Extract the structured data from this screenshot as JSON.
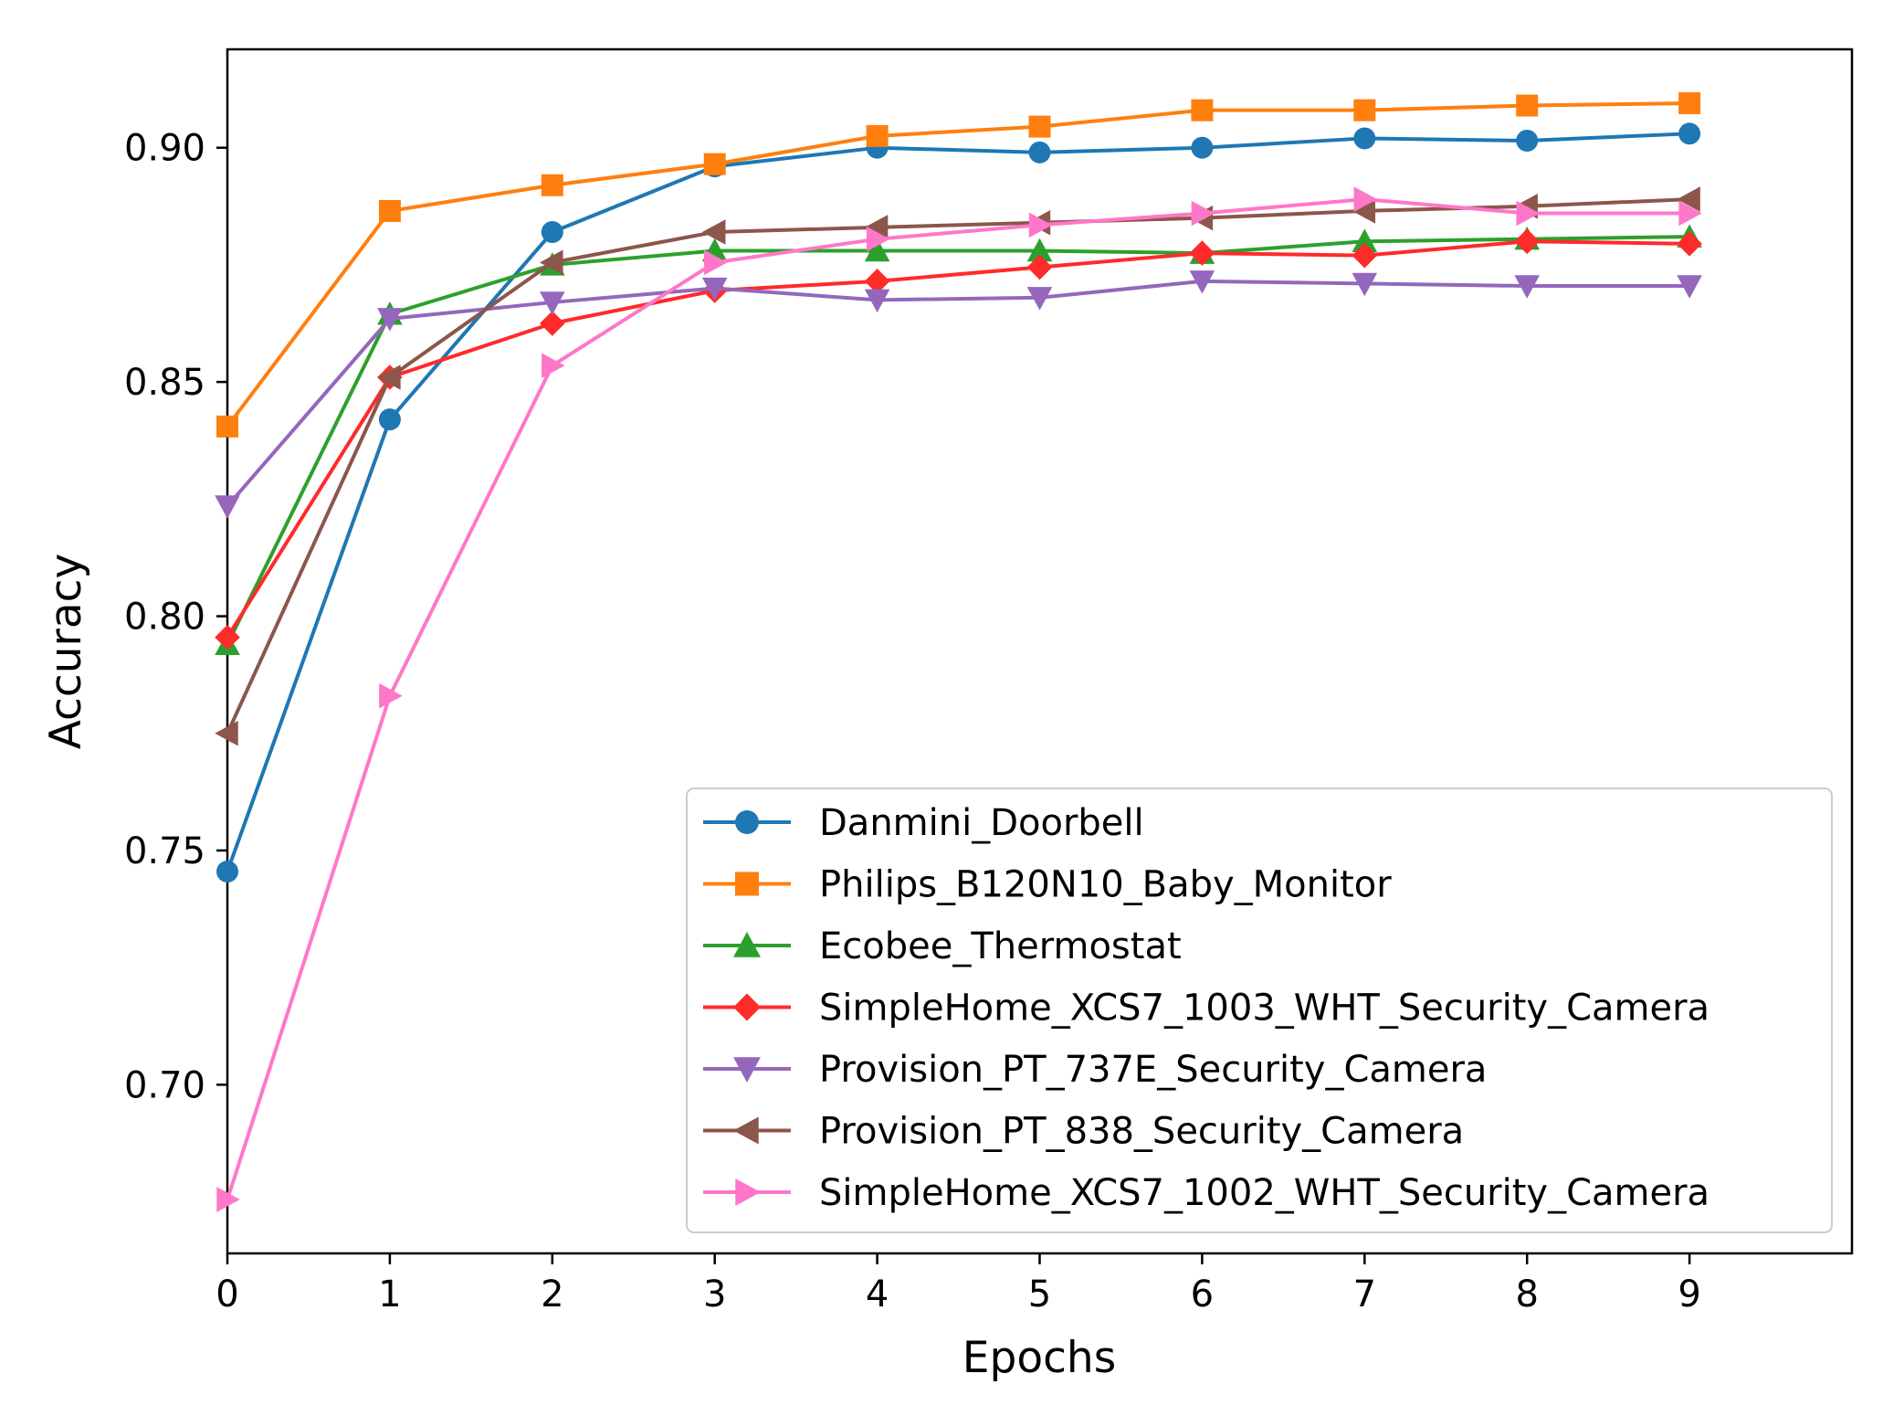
{
  "chart_data": {
    "type": "line",
    "title": "",
    "xlabel": "Epochs",
    "ylabel": "Accuracy",
    "xlim": [
      0,
      10
    ],
    "ylim": [
      0.664,
      0.921
    ],
    "grid": false,
    "legend_position": "lower-right",
    "x": [
      0,
      1,
      2,
      3,
      4,
      5,
      6,
      7,
      8,
      9
    ],
    "x_ticks": [
      0,
      1,
      2,
      3,
      4,
      5,
      6,
      7,
      8,
      9
    ],
    "x_tick_labels": [
      "0",
      "1",
      "2",
      "3",
      "4",
      "5",
      "6",
      "7",
      "8",
      "9"
    ],
    "y_ticks": [
      0.7,
      0.75,
      0.8,
      0.85,
      0.9
    ],
    "y_tick_labels": [
      "0.70",
      "0.75",
      "0.80",
      "0.85",
      "0.90"
    ],
    "series": [
      {
        "name": "Danmini_Doorbell",
        "color": "#1f77b4",
        "marker": "circle",
        "values": [
          0.7455,
          0.842,
          0.882,
          0.896,
          0.9,
          0.899,
          0.9,
          0.902,
          0.9015,
          0.903
        ]
      },
      {
        "name": "Philips_B120N10_Baby_Monitor",
        "color": "#ff7f0e",
        "marker": "square",
        "values": [
          0.8405,
          0.8865,
          0.892,
          0.8965,
          0.9025,
          0.9045,
          0.908,
          0.908,
          0.909,
          0.9095
        ]
      },
      {
        "name": "Ecobee_Thermostat",
        "color": "#2ca02c",
        "marker": "triangle-up",
        "values": [
          0.794,
          0.8645,
          0.875,
          0.878,
          0.878,
          0.878,
          0.8775,
          0.88,
          0.8805,
          0.881
        ]
      },
      {
        "name": "SimpleHome_XCS7_1003_WHT_Security_Camera",
        "color": "#ff2a2a",
        "marker": "diamond",
        "values": [
          0.7955,
          0.851,
          0.8625,
          0.8695,
          0.8715,
          0.8745,
          0.8775,
          0.877,
          0.88,
          0.8795
        ]
      },
      {
        "name": "Provision_PT_737E_Security_Camera",
        "color": "#9467bd",
        "marker": "triangle-down",
        "values": [
          0.8235,
          0.8635,
          0.867,
          0.87,
          0.8675,
          0.868,
          0.8715,
          0.871,
          0.8705,
          0.8705
        ]
      },
      {
        "name": "Provision_PT_838_Security_Camera",
        "color": "#8c564b",
        "marker": "triangle-left",
        "values": [
          0.775,
          0.851,
          0.8755,
          0.882,
          0.883,
          0.884,
          0.885,
          0.8865,
          0.8875,
          0.889
        ]
      },
      {
        "name": "SimpleHome_XCS7_1002_WHT_Security_Camera",
        "color": "#ff77c8",
        "marker": "triangle-right",
        "values": [
          0.6755,
          0.783,
          0.8535,
          0.8755,
          0.8805,
          0.8835,
          0.886,
          0.889,
          0.886,
          0.886
        ]
      }
    ]
  }
}
